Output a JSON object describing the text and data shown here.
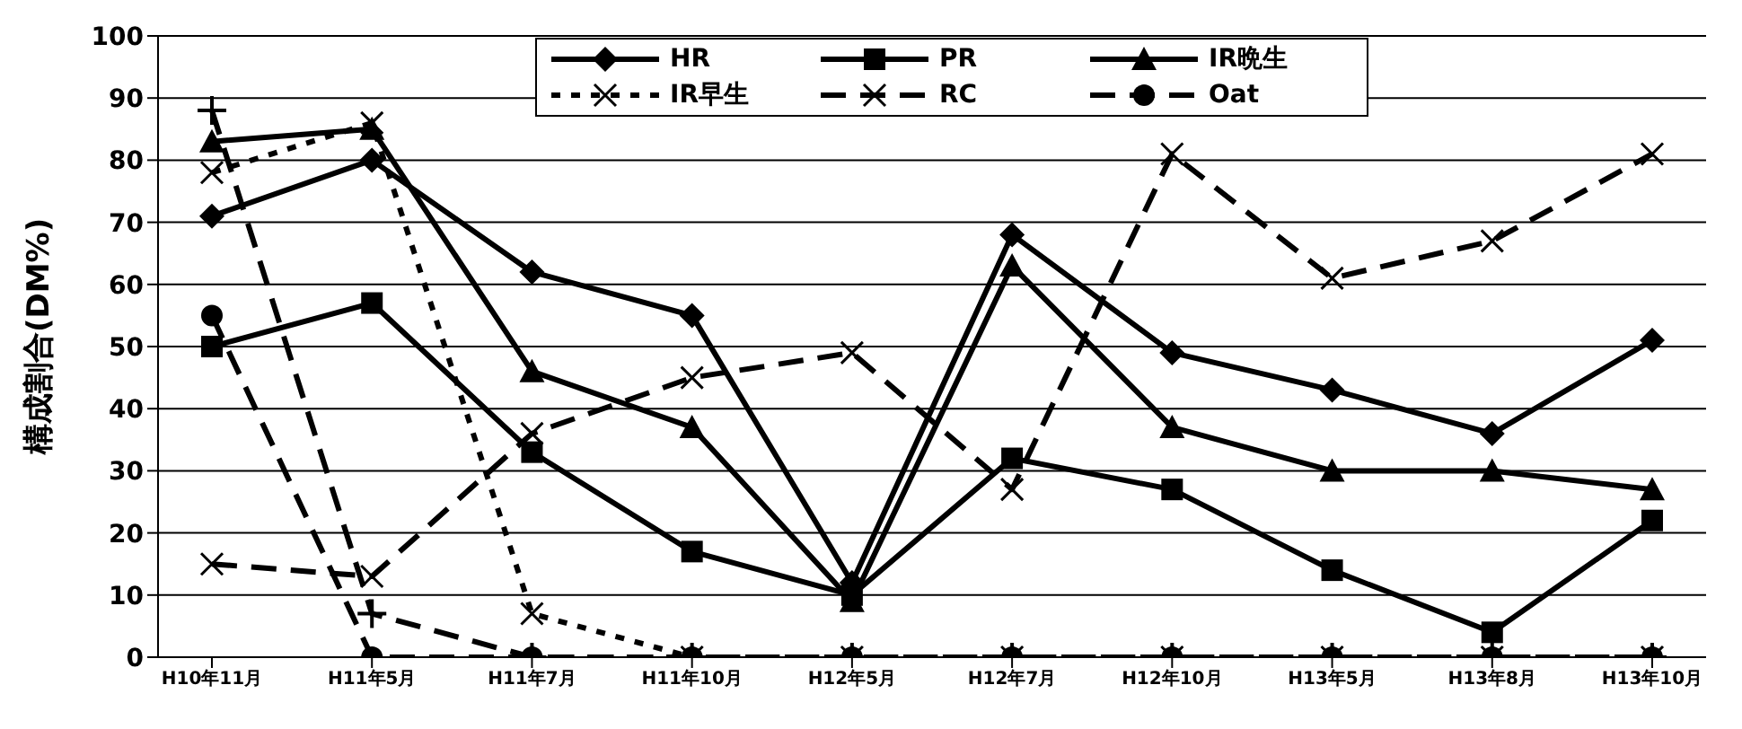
{
  "chart_data": {
    "type": "line",
    "ylabel": "構成割合(DM%)",
    "categories": [
      "H10年11月",
      "H11年5月",
      "H11年7月",
      "H11年10月",
      "H12年5月",
      "H12年7月",
      "H12年10月",
      "H13年5月",
      "H13年8月",
      "H13年10月"
    ],
    "series": [
      {
        "name": "HR",
        "color": "#000000",
        "marker": "diamond",
        "line_style": "solid",
        "values": [
          71,
          80,
          62,
          55,
          12,
          68,
          49,
          43,
          36,
          51
        ]
      },
      {
        "name": "PR",
        "color": "#000000",
        "marker": "square",
        "line_style": "solid",
        "values": [
          50,
          57,
          33,
          17,
          10,
          32,
          27,
          14,
          4,
          22
        ]
      },
      {
        "name": "IR晩生",
        "color": "#000000",
        "marker": "triangle",
        "line_style": "solid",
        "values": [
          83,
          85,
          46,
          37,
          9,
          63,
          37,
          30,
          30,
          27
        ]
      },
      {
        "name": "IR早生",
        "color": "#000000",
        "marker": "cross",
        "line_style": "dotted",
        "values": [
          78,
          86,
          7,
          0,
          0,
          0,
          0,
          0,
          0,
          0
        ]
      },
      {
        "name": "RC",
        "color": "#000000",
        "marker": "cross",
        "line_style": "dashed",
        "values": [
          15,
          13,
          36,
          45,
          49,
          27,
          81,
          61,
          67,
          81
        ]
      },
      {
        "name": "Oat",
        "color": "#000000",
        "marker": "circle",
        "line_style": "dashed",
        "values": [
          55,
          0,
          0,
          0,
          0,
          0,
          0,
          0,
          0,
          0
        ]
      },
      {
        "color": "#000000",
        "marker": "plus",
        "line_style": "dashed",
        "values": [
          88,
          7,
          0,
          0,
          0,
          0,
          0,
          0,
          0,
          0
        ]
      }
    ],
    "ylim": [
      0,
      100
    ],
    "yticks": [
      0,
      10,
      20,
      30,
      40,
      50,
      60,
      70,
      80,
      90,
      100
    ],
    "grid": "y",
    "legend": "top"
  }
}
